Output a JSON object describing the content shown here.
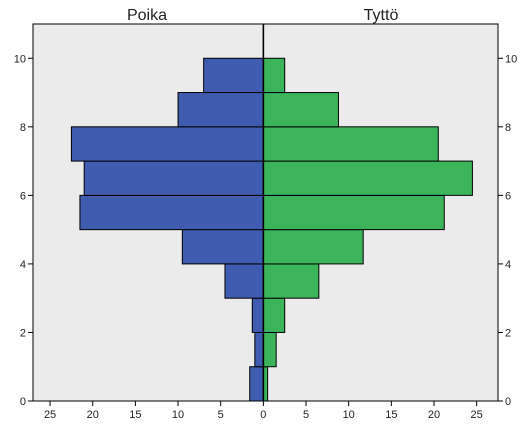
{
  "chart_data": {
    "type": "bar",
    "orientation": "horizontal",
    "layout": "population pyramid",
    "panels": [
      "Poika",
      "Tyttö"
    ],
    "series": [
      {
        "name": "Poika",
        "color": "#3f5cb0",
        "bins": [
          {
            "from": 0,
            "to": 1,
            "value": 1.6
          },
          {
            "from": 1,
            "to": 2,
            "value": 1.0
          },
          {
            "from": 2,
            "to": 3,
            "value": 1.3
          },
          {
            "from": 3,
            "to": 4,
            "value": 4.5
          },
          {
            "from": 4,
            "to": 5,
            "value": 9.5
          },
          {
            "from": 5,
            "to": 6,
            "value": 21.5
          },
          {
            "from": 6,
            "to": 7,
            "value": 21.0
          },
          {
            "from": 7,
            "to": 8,
            "value": 22.5
          },
          {
            "from": 8,
            "to": 9,
            "value": 10.0
          },
          {
            "from": 9,
            "to": 10,
            "value": 7.0
          }
        ]
      },
      {
        "name": "Tyttö",
        "color": "#3cb55a",
        "bins": [
          {
            "from": 0,
            "to": 1,
            "value": 0.5
          },
          {
            "from": 1,
            "to": 2,
            "value": 1.5
          },
          {
            "from": 2,
            "to": 3,
            "value": 2.5
          },
          {
            "from": 3,
            "to": 4,
            "value": 6.5
          },
          {
            "from": 4,
            "to": 5,
            "value": 11.7
          },
          {
            "from": 5,
            "to": 6,
            "value": 21.2
          },
          {
            "from": 6,
            "to": 7,
            "value": 24.5
          },
          {
            "from": 7,
            "to": 8,
            "value": 20.5
          },
          {
            "from": 8,
            "to": 9,
            "value": 8.8
          },
          {
            "from": 9,
            "to": 10,
            "value": 2.5
          }
        ]
      }
    ],
    "x_ticks": [
      "25",
      "20",
      "15",
      "10",
      "5",
      "0",
      "5",
      "10",
      "15",
      "20",
      "25"
    ],
    "x_tick_values": [
      -25,
      -20,
      -15,
      -10,
      -5,
      0,
      5,
      10,
      15,
      20,
      25
    ],
    "xlim": [
      -27,
      27.5
    ],
    "y_ticks": [
      "0",
      "2",
      "4",
      "6",
      "8",
      "10"
    ],
    "y_tick_values": [
      0,
      2,
      4,
      6,
      8,
      10
    ],
    "ylim": [
      0,
      11
    ],
    "plot_background": "#ebebeb",
    "grid": false
  }
}
